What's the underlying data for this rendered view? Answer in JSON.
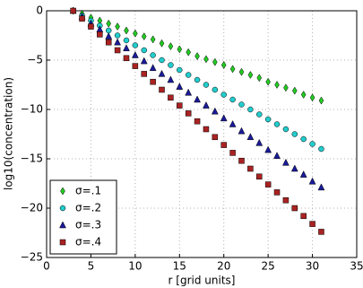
{
  "chart_data": {
    "type": "scatter",
    "xlabel": "r [grid units]",
    "ylabel": "log10(concentration)",
    "x": [
      3,
      4,
      5,
      6,
      7,
      8,
      9,
      10,
      11,
      12,
      13,
      14,
      15,
      16,
      17,
      18,
      19,
      20,
      21,
      22,
      23,
      24,
      25,
      26,
      27,
      28,
      29,
      30,
      31
    ],
    "series": [
      {
        "name": "σ=.1",
        "color": "#22cc22",
        "marker": "diamond",
        "values": [
          0,
          -0.3,
          -0.7,
          -1.0,
          -1.3,
          -1.6,
          -2.0,
          -2.3,
          -2.6,
          -2.9,
          -3.3,
          -3.6,
          -3.9,
          -4.2,
          -4.6,
          -4.9,
          -5.2,
          -5.5,
          -5.9,
          -6.2,
          -6.5,
          -6.8,
          -7.2,
          -7.5,
          -7.8,
          -8.1,
          -8.5,
          -8.8,
          -9.1
        ]
      },
      {
        "name": "σ=.2",
        "color": "#22cccc",
        "marker": "circle",
        "values": [
          0,
          -0.5,
          -1.0,
          -1.5,
          -2.0,
          -2.5,
          -3.0,
          -3.5,
          -4.0,
          -4.5,
          -5.0,
          -5.5,
          -6.0,
          -6.5,
          -7.0,
          -7.5,
          -8.0,
          -8.5,
          -9.0,
          -9.5,
          -10.0,
          -10.5,
          -11.0,
          -11.5,
          -12.0,
          -12.5,
          -13.0,
          -13.5,
          -14.0
        ]
      },
      {
        "name": "σ=.3",
        "color": "#1a1a99",
        "marker": "triangle",
        "values": [
          0,
          -0.6,
          -1.3,
          -1.9,
          -2.6,
          -3.2,
          -3.8,
          -4.5,
          -5.1,
          -5.8,
          -6.4,
          -7.0,
          -7.7,
          -8.3,
          -9.0,
          -9.6,
          -10.2,
          -10.9,
          -11.5,
          -12.2,
          -12.8,
          -13.4,
          -14.1,
          -14.7,
          -15.4,
          -16.0,
          -16.6,
          -17.3,
          -17.9
        ]
      },
      {
        "name": "σ=.4",
        "color": "#aa2222",
        "marker": "square",
        "values": [
          0,
          -0.8,
          -1.6,
          -2.4,
          -3.2,
          -4.0,
          -4.8,
          -5.6,
          -6.4,
          -7.2,
          -8.0,
          -8.8,
          -9.6,
          -10.4,
          -11.2,
          -12.0,
          -12.8,
          -13.6,
          -14.4,
          -15.2,
          -16.0,
          -16.8,
          -17.6,
          -18.4,
          -19.2,
          -20.0,
          -20.8,
          -21.6,
          -22.4
        ]
      }
    ],
    "xlim": [
      0,
      35
    ],
    "xticks": [
      0,
      5,
      10,
      15,
      20,
      25,
      30,
      35
    ],
    "ylim": [
      -25,
      0
    ],
    "yticks": [
      {
        "value": -25,
        "label": "−25"
      },
      {
        "value": -20,
        "label": "−20"
      },
      {
        "value": -15,
        "label": "−15"
      },
      {
        "value": -10,
        "label": "−10"
      },
      {
        "value": -5,
        "label": "−5"
      },
      0
    ],
    "grid": true,
    "legend": "lower left"
  }
}
